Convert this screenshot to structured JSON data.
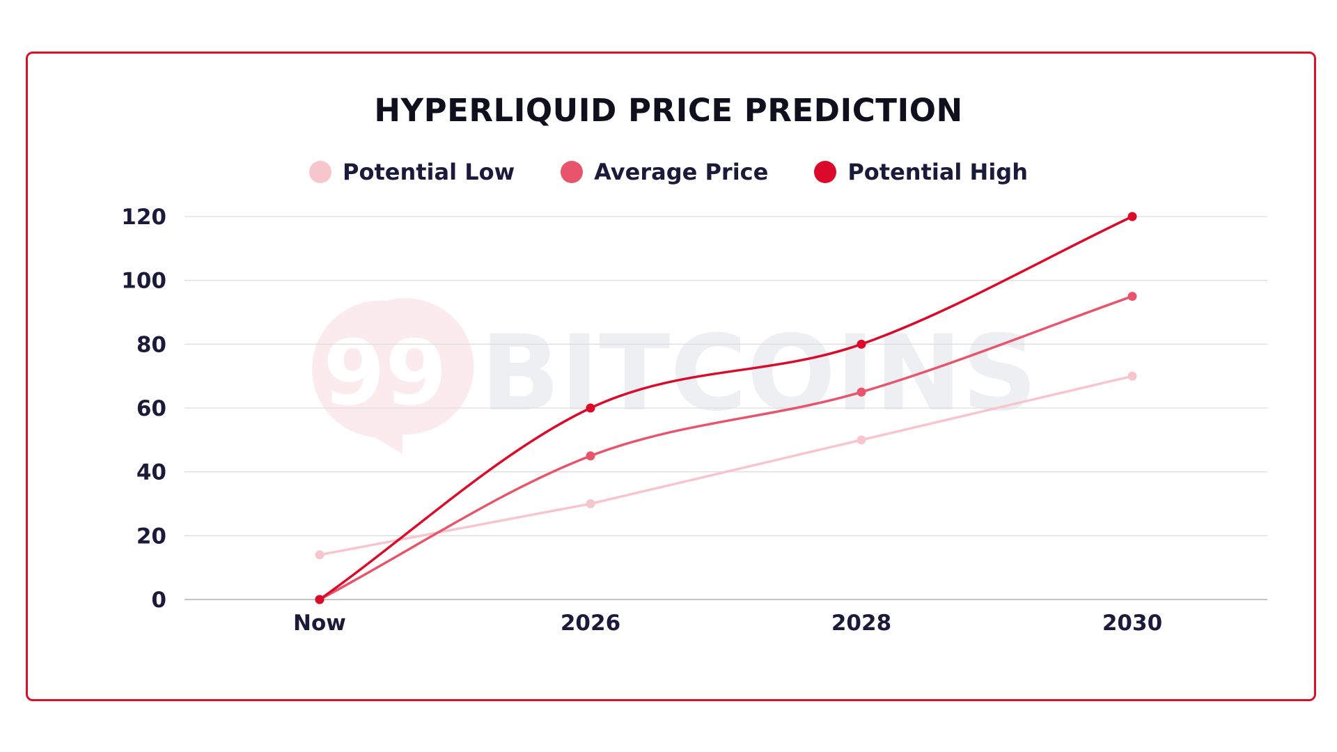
{
  "chart_data": {
    "type": "line",
    "title": "HYPERLIQUID PRICE PREDICTION",
    "categories": [
      "Now",
      "2026",
      "2028",
      "2030"
    ],
    "series": [
      {
        "name": "Potential Low",
        "values": [
          14,
          30,
          50,
          70
        ],
        "color": "#f7c6cd"
      },
      {
        "name": "Average Price",
        "values": [
          0,
          45,
          65,
          95
        ],
        "color": "#e8546b"
      },
      {
        "name": "Potential High",
        "values": [
          0,
          60,
          80,
          120
        ],
        "color": "#dc0a2a"
      }
    ],
    "ylim": [
      0,
      120
    ],
    "yticks": [
      0,
      20,
      40,
      60,
      80,
      100,
      120
    ],
    "grid": true,
    "legend": "top-center",
    "xlabel": "",
    "ylabel": ""
  },
  "watermark": {
    "badge": "99",
    "text": "BITCOINS"
  },
  "colors": {
    "frame": "#d9102a",
    "grid": "#dedede",
    "axis": "#c4c4c4"
  }
}
